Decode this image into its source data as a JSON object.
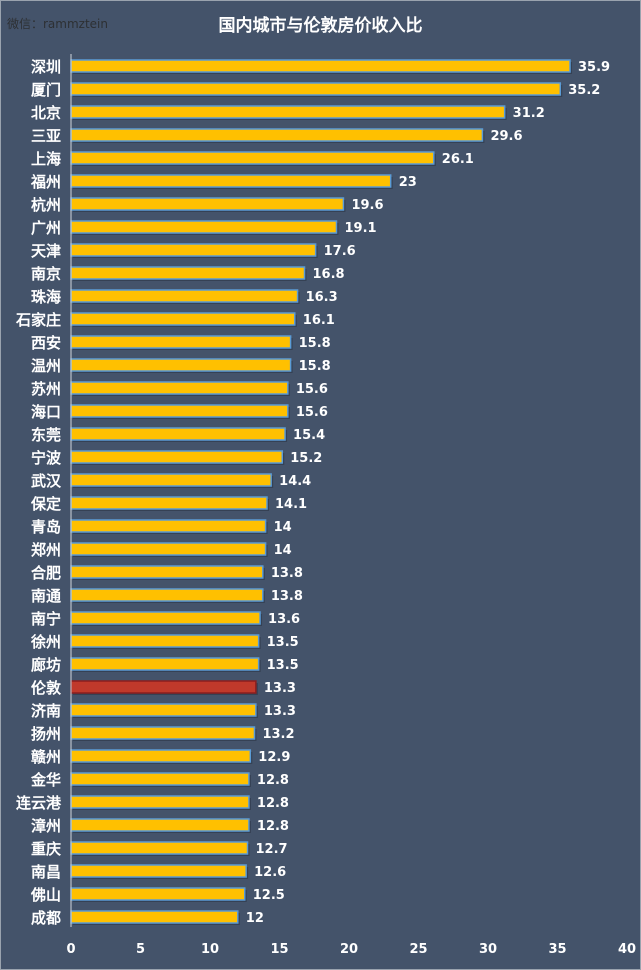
{
  "chart_data": {
    "type": "bar",
    "orientation": "horizontal",
    "title": "国内城市与伦敦房价收入比",
    "categories": [
      "深圳",
      "厦门",
      "北京",
      "三亚",
      "上海",
      "福州",
      "杭州",
      "广州",
      "天津",
      "南京",
      "珠海",
      "石家庄",
      "西安",
      "温州",
      "苏州",
      "海口",
      "东莞",
      "宁波",
      "武汉",
      "保定",
      "青岛",
      "郑州",
      "合肥",
      "南通",
      "南宁",
      "徐州",
      "廊坊",
      "伦敦",
      "济南",
      "扬州",
      "赣州",
      "金华",
      "连云港",
      "漳州",
      "重庆",
      "南昌",
      "佛山",
      "成都"
    ],
    "values": [
      35.9,
      35.2,
      31.2,
      29.6,
      26.1,
      23,
      19.6,
      19.1,
      17.6,
      16.8,
      16.3,
      16.1,
      15.8,
      15.8,
      15.6,
      15.6,
      15.4,
      15.2,
      14.4,
      14.1,
      14,
      14,
      13.8,
      13.8,
      13.6,
      13.5,
      13.5,
      13.3,
      13.3,
      13.2,
      12.9,
      12.8,
      12.8,
      12.8,
      12.7,
      12.6,
      12.5,
      12
    ],
    "highlight": "伦敦",
    "xlim": [
      0,
      40
    ],
    "xticks": [
      0,
      5,
      10,
      15,
      20,
      25,
      30,
      35,
      40
    ],
    "grid": false,
    "colors": {
      "bar": "#ffc000",
      "highlight": "#c0392b",
      "bar_edge": "#5b9bd5",
      "background": "#44536a",
      "text": "#ffffff"
    }
  },
  "watermark": "微信：rammztein"
}
